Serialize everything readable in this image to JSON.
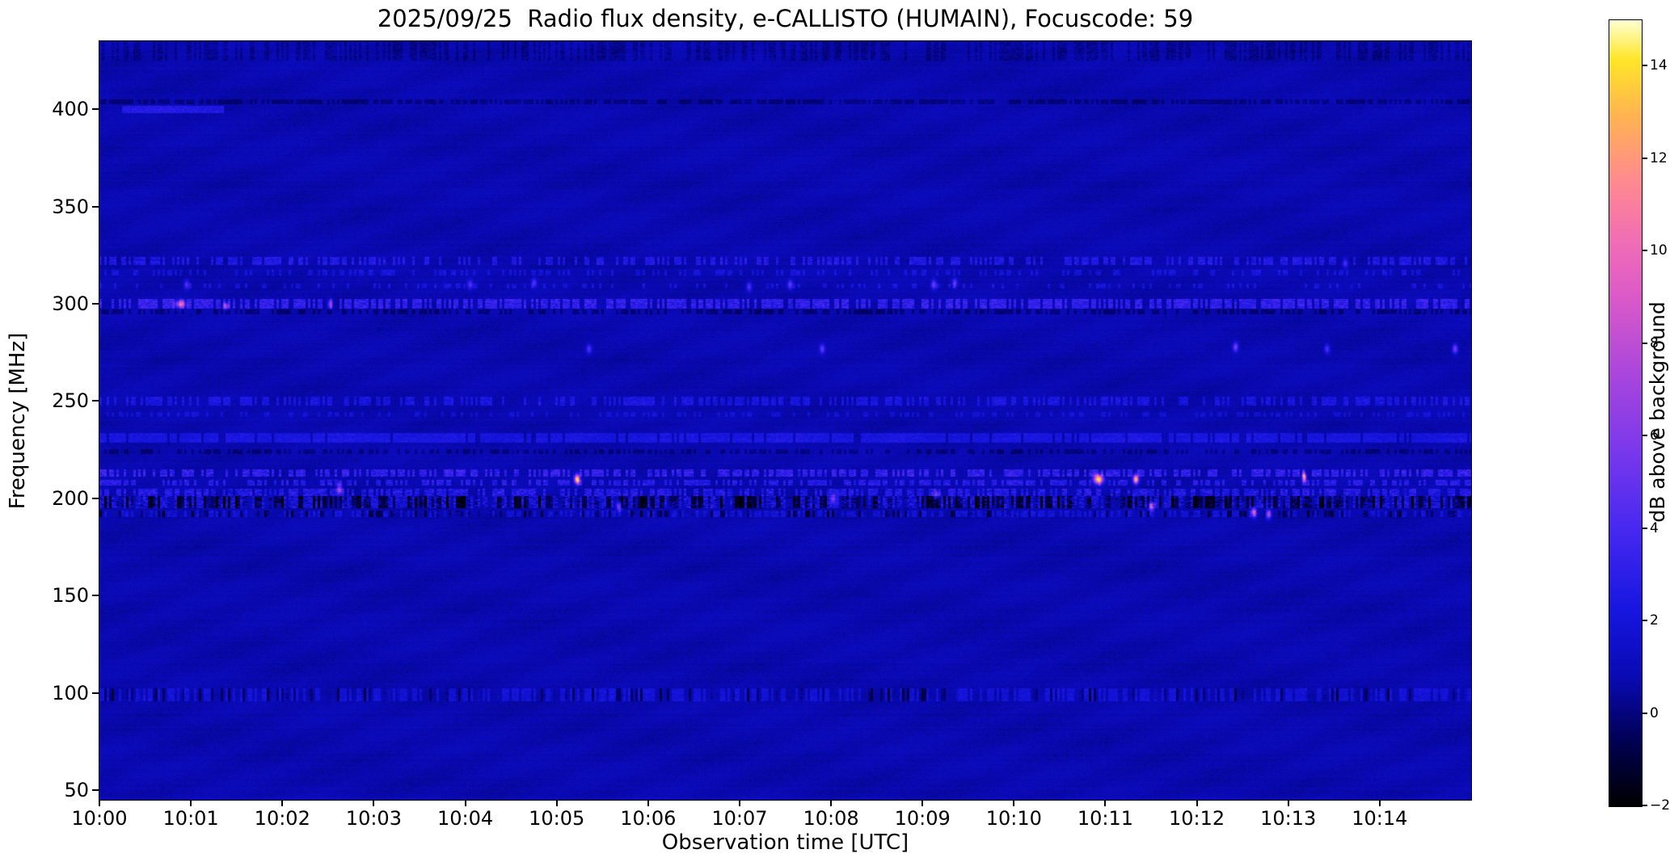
{
  "chart_data": {
    "type": "heatmap",
    "subtype": "radio-spectrogram",
    "title": "2025/09/25  Radio flux density, e-CALLISTO (HUMAIN), Focuscode: 59",
    "xlabel": "Observation time [UTC]",
    "ylabel": "Frequency [MHz]",
    "colorbar_label": "dB above background",
    "x_ticks": [
      {
        "label": "10:00",
        "minute": 0
      },
      {
        "label": "10:01",
        "minute": 1
      },
      {
        "label": "10:02",
        "minute": 2
      },
      {
        "label": "10:03",
        "minute": 3
      },
      {
        "label": "10:04",
        "minute": 4
      },
      {
        "label": "10:05",
        "minute": 5
      },
      {
        "label": "10:06",
        "minute": 6
      },
      {
        "label": "10:07",
        "minute": 7
      },
      {
        "label": "10:08",
        "minute": 8
      },
      {
        "label": "10:09",
        "minute": 9
      },
      {
        "label": "10:10",
        "minute": 10
      },
      {
        "label": "10:11",
        "minute": 11
      },
      {
        "label": "10:12",
        "minute": 12
      },
      {
        "label": "10:13",
        "minute": 13
      },
      {
        "label": "10:14",
        "minute": 14
      }
    ],
    "x_range_minutes": [
      0,
      15
    ],
    "y_ticks": [
      50,
      100,
      150,
      200,
      250,
      300,
      350,
      400
    ],
    "y_range_mhz": [
      45,
      435
    ],
    "value_range_db": [
      -2,
      15
    ],
    "colorbar_ticks": [
      -2,
      0,
      2,
      4,
      6,
      8,
      10,
      12,
      14
    ],
    "background_level_db": 0.8,
    "colormap": {
      "name": "gnuplot2-like",
      "stops": [
        {
          "t": 0.0,
          "color": "#000000"
        },
        {
          "t": 0.08,
          "color": "#000050"
        },
        {
          "t": 0.165,
          "color": "#0a0ab4"
        },
        {
          "t": 0.25,
          "color": "#1616e0"
        },
        {
          "t": 0.35,
          "color": "#4628f0"
        },
        {
          "t": 0.45,
          "color": "#7838ec"
        },
        {
          "t": 0.55,
          "color": "#aa46dc"
        },
        {
          "t": 0.65,
          "color": "#dc5ac8"
        },
        {
          "t": 0.72,
          "color": "#f06eb4"
        },
        {
          "t": 0.8,
          "color": "#ff8c8c"
        },
        {
          "t": 0.88,
          "color": "#ffb450"
        },
        {
          "t": 0.95,
          "color": "#ffe628"
        },
        {
          "t": 1.0,
          "color": "#ffffd2"
        }
      ]
    },
    "interference_bands": [
      {
        "freq_mhz": 430,
        "halfwidth_mhz": 5.0,
        "base_db": -1.0,
        "var_db": 0.9,
        "duty": 0.5,
        "dark_dip_db": 0,
        "dark_duty": 0,
        "note": "dark speckle near top edge"
      },
      {
        "freq_mhz": 404,
        "halfwidth_mhz": 1.2,
        "base_db": -1.0,
        "var_db": 0.5,
        "duty": 0.7,
        "dark_dip_db": 0,
        "dark_duty": 0,
        "note": "faint dark line"
      },
      {
        "freq_mhz": 322,
        "halfwidth_mhz": 2.2,
        "base_db": 1.1,
        "var_db": 1.4,
        "duty": 0.45,
        "dark_dip_db": 0,
        "dark_duty": 0,
        "note": "dotted RFI band"
      },
      {
        "freq_mhz": 316,
        "halfwidth_mhz": 1.4,
        "base_db": 0.7,
        "var_db": 1.1,
        "duty": 0.3,
        "dark_dip_db": 0,
        "dark_duty": 0,
        "note": "faint dotted band"
      },
      {
        "freq_mhz": 309,
        "halfwidth_mhz": 1.2,
        "base_db": 0.6,
        "var_db": 1.4,
        "duty": 0.2,
        "dark_dip_db": 0,
        "dark_duty": 0,
        "note": "sparse dots"
      },
      {
        "freq_mhz": 300,
        "halfwidth_mhz": 2.4,
        "base_db": 1.5,
        "var_db": 1.8,
        "duty": 0.65,
        "dark_dip_db": 0,
        "dark_duty": 0,
        "note": "strong RFI band"
      },
      {
        "freq_mhz": 296,
        "halfwidth_mhz": 1.2,
        "base_db": -1.3,
        "var_db": 0.7,
        "duty": 0.5,
        "dark_dip_db": 0,
        "dark_duty": 0,
        "note": "dark companion line"
      },
      {
        "freq_mhz": 250,
        "halfwidth_mhz": 2.2,
        "base_db": 0.9,
        "var_db": 1.2,
        "duty": 0.5,
        "dark_dip_db": 0,
        "dark_duty": 0,
        "note": "dotted RFI band"
      },
      {
        "freq_mhz": 243,
        "halfwidth_mhz": 1.3,
        "base_db": 0.6,
        "var_db": 0.9,
        "duty": 0.35,
        "dark_dip_db": 0,
        "dark_duty": 0,
        "note": "faint band"
      },
      {
        "freq_mhz": 231,
        "halfwidth_mhz": 2.6,
        "base_db": 1.1,
        "var_db": 0.8,
        "duty": 0.85,
        "dark_dip_db": 0,
        "dark_duty": 0,
        "note": "continuous bluish band"
      },
      {
        "freq_mhz": 224,
        "halfwidth_mhz": 1.2,
        "base_db": -1.1,
        "var_db": 0.6,
        "duty": 0.5,
        "dark_dip_db": 0,
        "dark_duty": 0,
        "note": "dark line"
      },
      {
        "freq_mhz": 213,
        "halfwidth_mhz": 1.8,
        "base_db": 1.4,
        "var_db": 2.0,
        "duty": 0.55,
        "dark_dip_db": 0,
        "dark_duty": 0,
        "note": "busy transmitter band"
      },
      {
        "freq_mhz": 208,
        "halfwidth_mhz": 1.4,
        "base_db": 1.1,
        "var_db": 1.8,
        "duty": 0.5,
        "dark_dip_db": 0,
        "dark_duty": 0,
        "note": "busy transmitter band"
      },
      {
        "freq_mhz": 203,
        "halfwidth_mhz": 1.8,
        "base_db": 0.7,
        "var_db": 2.2,
        "duty": 0.6,
        "dark_dip_db": 0,
        "dark_duty": 0,
        "note": "busy band"
      },
      {
        "freq_mhz": 198,
        "halfwidth_mhz": 3.2,
        "base_db": -0.3,
        "var_db": 2.8,
        "duty": 0.75,
        "dark_dip_db": 2.6,
        "dark_duty": 0.5,
        "note": "strong dark/bright DAB band"
      },
      {
        "freq_mhz": 192,
        "halfwidth_mhz": 1.8,
        "base_db": 0.4,
        "var_db": 1.4,
        "duty": 0.5,
        "dark_dip_db": 1.6,
        "dark_duty": 0.3,
        "note": "mixed band"
      },
      {
        "freq_mhz": 99,
        "halfwidth_mhz": 3.5,
        "base_db": 0.7,
        "var_db": 0.9,
        "duty": 0.55,
        "dark_dip_db": 1.3,
        "dark_duty": 0.25,
        "note": "FM broadcast speckle"
      }
    ],
    "transient_segments": [
      {
        "freq_mhz": 400,
        "halfwidth_mhz": 1.5,
        "t_start_min": 0.25,
        "t_end_min": 1.35,
        "db": 2.5,
        "note": "blue streak near 10:00-10:01"
      }
    ],
    "bright_spots": [
      {
        "t_min": 5.22,
        "freq_mhz": 210,
        "peak_db": 14.5
      },
      {
        "t_min": 10.92,
        "freq_mhz": 210,
        "peak_db": 14.5,
        "sigma_t_min": 0.035
      },
      {
        "t_min": 11.33,
        "freq_mhz": 210,
        "peak_db": 13.5
      },
      {
        "t_min": 13.17,
        "freq_mhz": 211,
        "peak_db": 12.5,
        "sigma_t_min": 0.015
      },
      {
        "t_min": 11.5,
        "freq_mhz": 196,
        "peak_db": 9.0,
        "sigma_f_mhz": 1.4
      },
      {
        "t_min": 12.62,
        "freq_mhz": 193,
        "peak_db": 9.0
      },
      {
        "t_min": 12.78,
        "freq_mhz": 192,
        "peak_db": 7.0
      },
      {
        "t_min": 2.62,
        "freq_mhz": 205,
        "peak_db": 6.5
      },
      {
        "t_min": 5.68,
        "freq_mhz": 196,
        "peak_db": 6.5
      },
      {
        "t_min": 8.02,
        "freq_mhz": 200,
        "peak_db": 5.5
      },
      {
        "t_min": 9.15,
        "freq_mhz": 202,
        "peak_db": 5.5
      },
      {
        "t_min": 0.88,
        "freq_mhz": 300,
        "peak_db": 8.0,
        "sigma_t_min": 0.04,
        "sigma_f_mhz": 1.3
      },
      {
        "t_min": 1.38,
        "freq_mhz": 299,
        "peak_db": 7.0,
        "sigma_f_mhz": 1.2
      },
      {
        "t_min": 2.52,
        "freq_mhz": 300,
        "peak_db": 5.5
      },
      {
        "t_min": 5.35,
        "freq_mhz": 277,
        "peak_db": 4.5
      },
      {
        "t_min": 7.9,
        "freq_mhz": 277,
        "peak_db": 5.0
      },
      {
        "t_min": 12.42,
        "freq_mhz": 278,
        "peak_db": 6.0
      },
      {
        "t_min": 13.42,
        "freq_mhz": 277,
        "peak_db": 4.5
      },
      {
        "t_min": 14.82,
        "freq_mhz": 277,
        "peak_db": 6.0
      },
      {
        "t_min": 0.95,
        "freq_mhz": 310,
        "peak_db": 4.5
      },
      {
        "t_min": 4.05,
        "freq_mhz": 310,
        "peak_db": 4.5
      },
      {
        "t_min": 4.75,
        "freq_mhz": 311,
        "peak_db": 4.5
      },
      {
        "t_min": 7.1,
        "freq_mhz": 309,
        "peak_db": 4.5
      },
      {
        "t_min": 7.55,
        "freq_mhz": 310,
        "peak_db": 5.0
      },
      {
        "t_min": 9.12,
        "freq_mhz": 310,
        "peak_db": 5.5
      },
      {
        "t_min": 9.35,
        "freq_mhz": 311,
        "peak_db": 5.0
      },
      {
        "t_min": 13.62,
        "freq_mhz": 321,
        "peak_db": 4.5
      }
    ]
  }
}
